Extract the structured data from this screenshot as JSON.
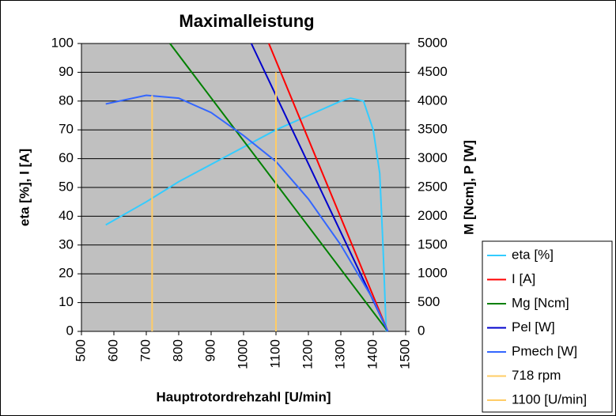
{
  "chart_data": {
    "type": "line",
    "title": "Maximalleistung",
    "x_label": "Hauptrotordrehzahl [U/min]",
    "y_label": "eta [%], I [A]",
    "y2_label": "M [Ncm], P [W]",
    "xlim": [
      500,
      1500
    ],
    "xticks": [
      500,
      600,
      700,
      800,
      900,
      1000,
      1100,
      1200,
      1300,
      1400,
      1500
    ],
    "ylim": [
      0,
      100
    ],
    "yticks": [
      0,
      10,
      20,
      30,
      40,
      50,
      60,
      70,
      80,
      90,
      100
    ],
    "y2lim": [
      0,
      5000
    ],
    "y2ticks": [
      0,
      500,
      1000,
      1500,
      2000,
      2500,
      3000,
      3500,
      4000,
      4500,
      5000
    ],
    "grid": true,
    "legend": "lower right",
    "series": [
      {
        "name": "eta [%]",
        "color": "#33ccff",
        "x": [
          575,
          700,
          800,
          900,
          1000,
          1100,
          1200,
          1300,
          1330,
          1370,
          1400,
          1420,
          1430,
          1440
        ],
        "values": [
          37,
          45,
          52,
          58,
          64,
          70,
          75,
          80,
          81,
          80,
          70,
          55,
          30,
          0
        ]
      },
      {
        "name": "I [A]",
        "color": "#ff0000",
        "x": [
          1078,
          1445
        ],
        "values": [
          100,
          0
        ]
      },
      {
        "name": "Mg [Ncm]",
        "color": "#008000",
        "axis": "y2",
        "x": [
          773,
          1445
        ],
        "values": [
          5000,
          0
        ]
      },
      {
        "name": "Pel [W]",
        "color": "#0000cc",
        "axis": "y2",
        "x": [
          1024,
          1445
        ],
        "values": [
          5000,
          0
        ]
      },
      {
        "name": "Pmech [W]",
        "color": "#3366ff",
        "axis": "y2",
        "x": [
          575,
          700,
          800,
          900,
          1000,
          1100,
          1200,
          1300,
          1400,
          1445
        ],
        "values": [
          3950,
          4100,
          4050,
          3800,
          3400,
          2950,
          2300,
          1500,
          550,
          0
        ]
      },
      {
        "name": "718 rpm",
        "color": "#ffcc66",
        "x": [
          718,
          718
        ],
        "values": [
          0,
          82
        ]
      },
      {
        "name": "1100 [U/min]",
        "color": "#ffcc66",
        "x": [
          1100,
          1100
        ],
        "values": [
          0,
          90
        ]
      }
    ]
  }
}
